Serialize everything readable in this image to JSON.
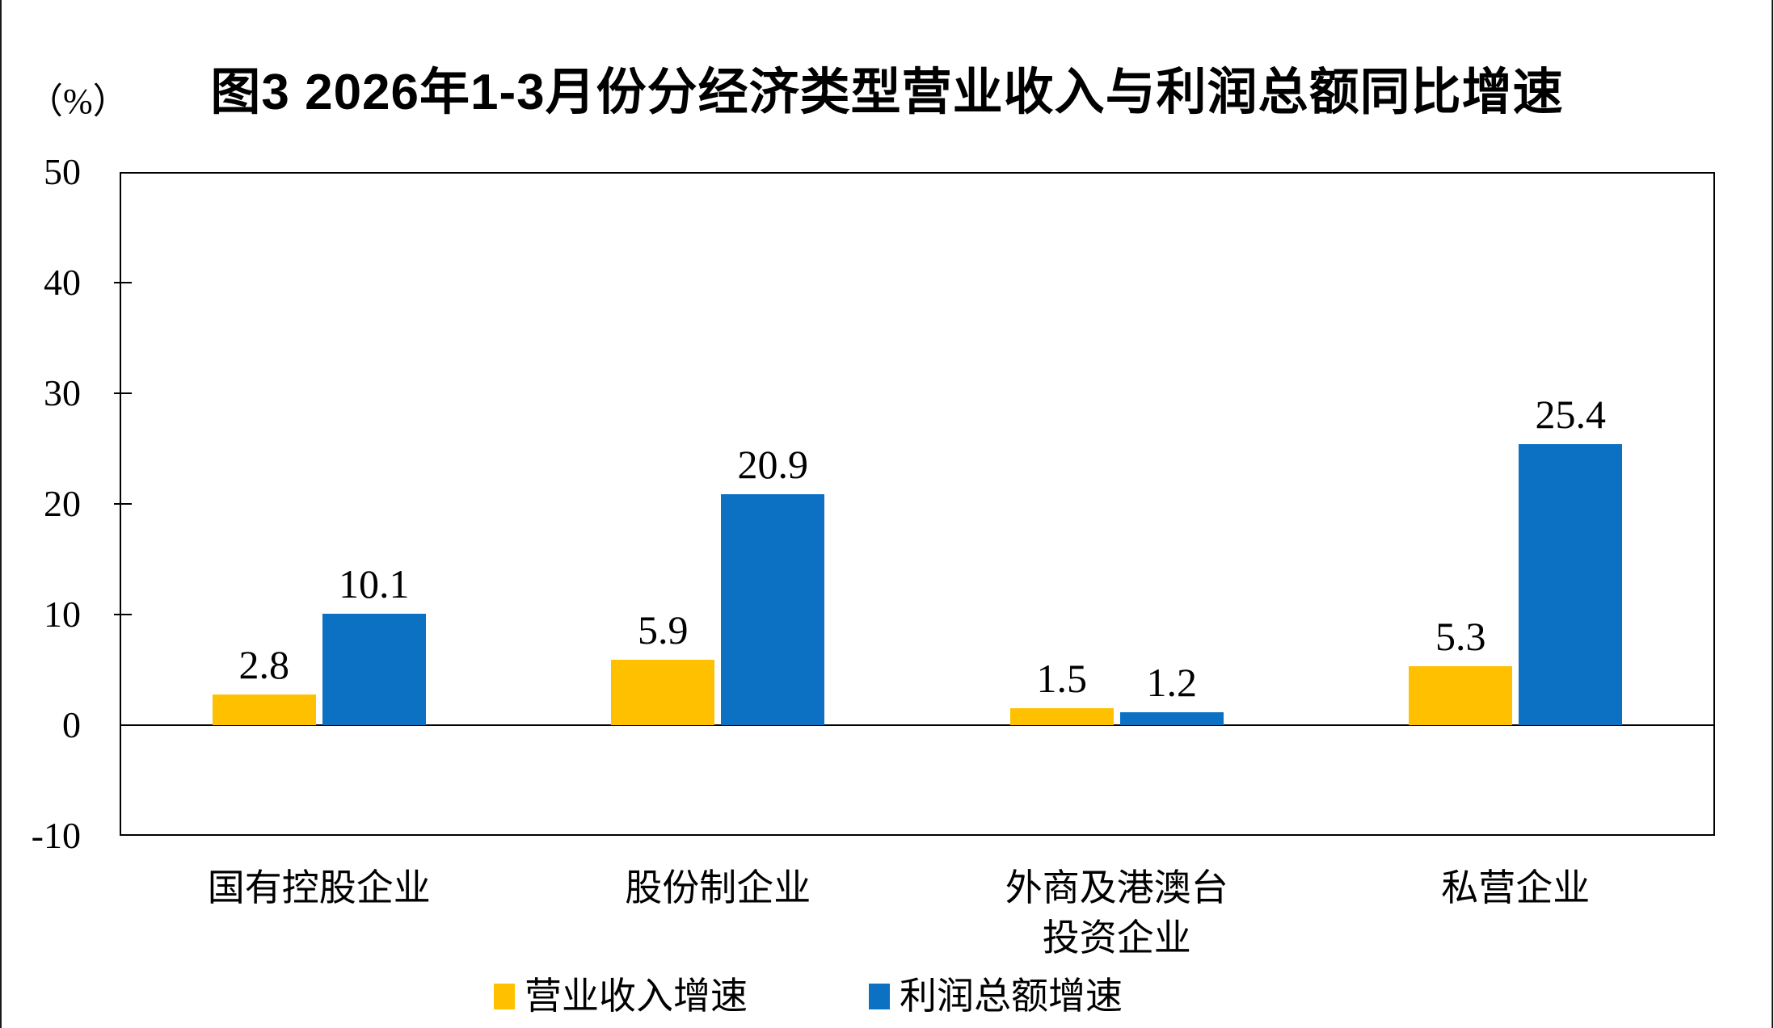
{
  "figure": {
    "title": "图3 2026年1-3月份分经济类型营业收入与利润总额同比增速"
  },
  "chart_data": {
    "type": "bar",
    "title": "图3 2026年1-3月份分经济类型营业收入与利润总额同比增速",
    "ylabel": "（%）",
    "xlabel": "",
    "categories": [
      "国有控股企业",
      "股份制企业",
      "外商及港澳台\n投资企业",
      "私营企业"
    ],
    "series": [
      {
        "name": "营业收入增速",
        "color": "#FFC000",
        "values": [
          2.8,
          5.9,
          1.5,
          5.3
        ]
      },
      {
        "name": "利润总额增速",
        "color": "#0C71C3",
        "values": [
          10.1,
          20.9,
          1.2,
          25.4
        ]
      }
    ],
    "ylim": [
      -10,
      50
    ],
    "yticks": [
      50,
      40,
      30,
      20,
      10,
      0,
      -10
    ],
    "grid": false,
    "data_labels": true,
    "legend_position": "bottom"
  }
}
